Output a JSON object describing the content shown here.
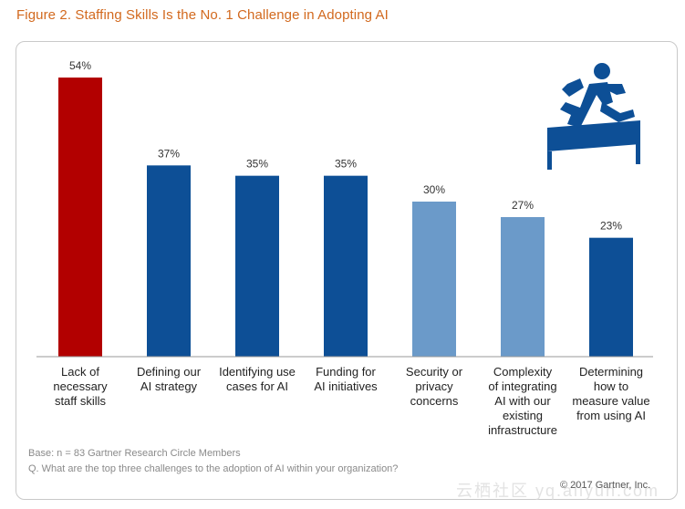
{
  "figure": {
    "title": "Figure 2. Staffing Skills Is the No. 1 Challenge in Adopting AI",
    "base_note": "Base: n = 83 Gartner Research Circle Members",
    "question_note": "Q. What are the top three challenges to the adoption of AI within your organization?",
    "copyright": "© 2017 Gartner, Inc.",
    "watermark": "云栖社区 yq.aliyun.com"
  },
  "chart_data": {
    "type": "bar",
    "title": "Figure 2. Staffing Skills Is the No. 1 Challenge in Adopting AI",
    "xlabel": "",
    "ylabel": "",
    "ylim": [
      0,
      54
    ],
    "grid": false,
    "unit": "%",
    "categories": [
      [
        "Lack of",
        "necessary",
        "staff skills"
      ],
      [
        "Defining our",
        "AI strategy"
      ],
      [
        "Identifying use",
        "cases for AI"
      ],
      [
        "Funding for",
        "AI initiatives"
      ],
      [
        "Security or",
        "privacy",
        "concerns"
      ],
      [
        "Complexity",
        "of integrating",
        "AI with our",
        "existing",
        "infrastructure"
      ],
      [
        "Determining",
        "how to",
        "measure value",
        "from using AI"
      ]
    ],
    "values": [
      54,
      37,
      35,
      35,
      30,
      27,
      23
    ],
    "value_labels": [
      "54%",
      "37%",
      "35%",
      "35%",
      "30%",
      "27%",
      "23%"
    ],
    "colors": [
      "#b20000",
      "#0d4f96",
      "#0d4f96",
      "#0d4f96",
      "#6b9ac9",
      "#6b9ac9",
      "#0d4f96"
    ]
  },
  "icon": {
    "name": "runner-hurdle-icon",
    "color": "#0d4f96"
  }
}
